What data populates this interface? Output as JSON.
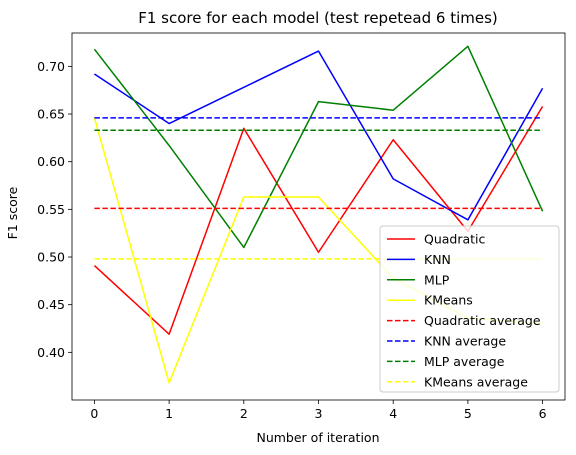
{
  "chart_data": {
    "type": "line",
    "title": "F1 score for each model (test repetead 6 times)",
    "xlabel": "Number of iteration",
    "ylabel": "F1 score",
    "x": [
      0,
      1,
      2,
      3,
      4,
      5,
      6
    ],
    "xlim": [
      -0.3,
      6.3
    ],
    "ylim": [
      0.35,
      0.735
    ],
    "xticks": [
      0,
      1,
      2,
      3,
      4,
      5,
      6
    ],
    "yticks": [
      0.4,
      0.45,
      0.5,
      0.55,
      0.6,
      0.65,
      0.7
    ],
    "ytick_labels": [
      "0.40",
      "0.45",
      "0.50",
      "0.55",
      "0.60",
      "0.65",
      "0.70"
    ],
    "grid": false,
    "legend_position": "lower-right",
    "series": [
      {
        "name": "Quadratic",
        "color": "#ff0000",
        "dashed": false,
        "values": [
          0.491,
          0.419,
          0.635,
          0.505,
          0.623,
          0.527,
          0.658
        ]
      },
      {
        "name": "KNN",
        "color": "#0000ff",
        "dashed": false,
        "values": [
          0.692,
          0.64,
          0.678,
          0.716,
          0.582,
          0.539,
          0.677
        ]
      },
      {
        "name": "MLP",
        "color": "#008000",
        "dashed": false,
        "values": [
          0.718,
          0.617,
          0.51,
          0.663,
          0.654,
          0.721,
          0.548
        ]
      },
      {
        "name": "KMeans",
        "color": "#ffff00",
        "dashed": false,
        "values": [
          0.646,
          0.368,
          0.563,
          0.563,
          0.478,
          0.436,
          0.43
        ]
      },
      {
        "name": "Quadratic average",
        "color": "#ff0000",
        "dashed": true,
        "values": [
          0.551,
          0.551,
          0.551,
          0.551,
          0.551,
          0.551,
          0.551
        ]
      },
      {
        "name": "KNN average",
        "color": "#0000ff",
        "dashed": true,
        "values": [
          0.646,
          0.646,
          0.646,
          0.646,
          0.646,
          0.646,
          0.646
        ]
      },
      {
        "name": "MLP average",
        "color": "#008000",
        "dashed": true,
        "values": [
          0.633,
          0.633,
          0.633,
          0.633,
          0.633,
          0.633,
          0.633
        ]
      },
      {
        "name": "KMeans average",
        "color": "#ffff00",
        "dashed": true,
        "values": [
          0.498,
          0.498,
          0.498,
          0.498,
          0.498,
          0.498,
          0.498
        ]
      }
    ]
  }
}
